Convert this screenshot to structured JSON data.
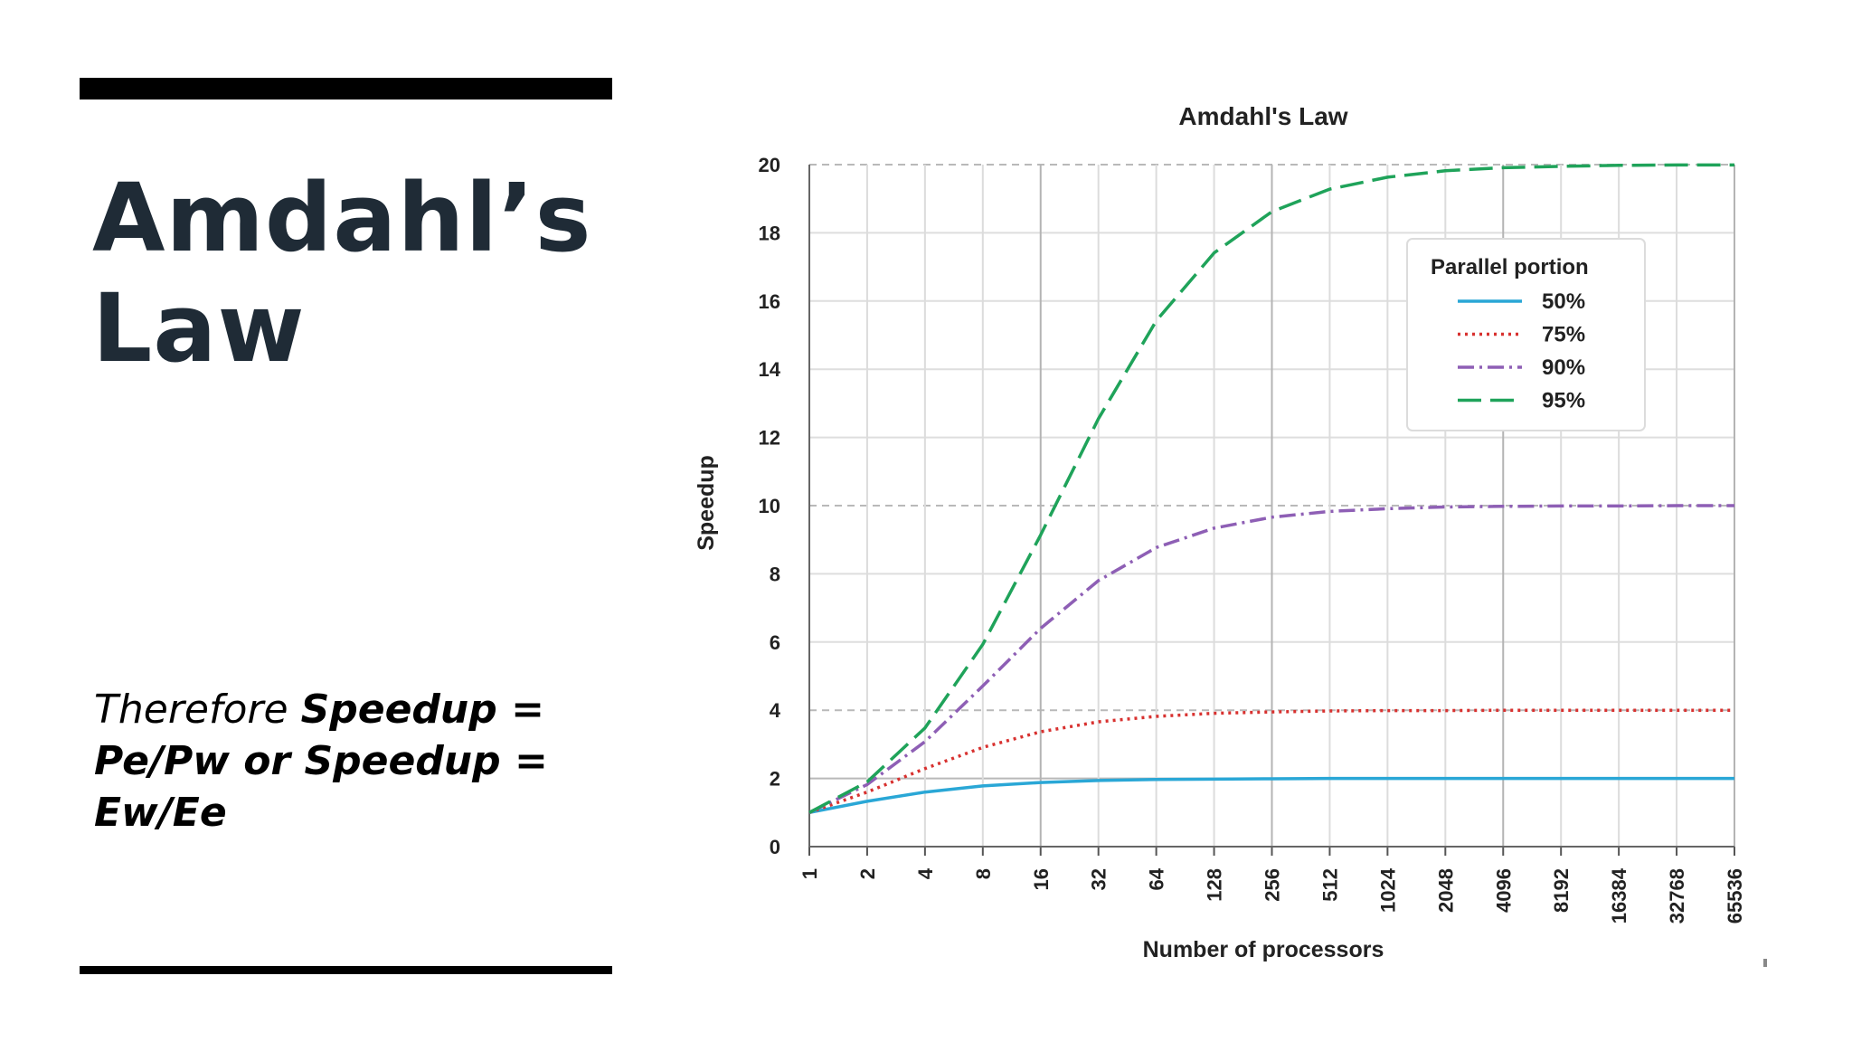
{
  "slide": {
    "title_line1": "Amdahl’s",
    "title_line2": "Law",
    "formula_prefix": "Therefore ",
    "formula_bold": "Speedup = Pe/Pw or Speedup = Ew/Ee"
  },
  "chart_data": {
    "type": "line",
    "title": "Amdahl's Law",
    "xlabel": "Number of processors",
    "ylabel": "Speedup",
    "x_scale": "log2",
    "categories": [
      "1",
      "2",
      "4",
      "8",
      "16",
      "32",
      "64",
      "128",
      "256",
      "512",
      "1024",
      "2048",
      "4096",
      "8192",
      "16384",
      "32768",
      "65536"
    ],
    "ylim": [
      0,
      20
    ],
    "yticks": [
      0,
      2,
      4,
      6,
      8,
      10,
      12,
      14,
      16,
      18,
      20
    ],
    "grid": true,
    "legend": {
      "title": "Parallel portion",
      "placement": "top-right"
    },
    "series": [
      {
        "name": "50%",
        "color": "#2aa7d6",
        "style": "solid",
        "values": [
          1.0,
          1.33,
          1.6,
          1.78,
          1.88,
          1.94,
          1.97,
          1.98,
          1.99,
          2.0,
          2.0,
          2.0,
          2.0,
          2.0,
          2.0,
          2.0,
          2.0
        ]
      },
      {
        "name": "75%",
        "color": "#d8312f",
        "style": "dotted",
        "values": [
          1.0,
          1.6,
          2.29,
          2.91,
          3.37,
          3.66,
          3.82,
          3.91,
          3.95,
          3.98,
          3.99,
          3.99,
          4.0,
          4.0,
          4.0,
          4.0,
          4.0
        ]
      },
      {
        "name": "90%",
        "color": "#8e5fb5",
        "style": "dashdot",
        "values": [
          1.0,
          1.82,
          3.08,
          4.71,
          6.4,
          7.8,
          8.77,
          9.34,
          9.66,
          9.83,
          9.91,
          9.96,
          9.98,
          9.99,
          9.99,
          10.0,
          10.0
        ]
      },
      {
        "name": "95%",
        "color": "#1fa35a",
        "style": "dashed",
        "values": [
          1.0,
          1.9,
          3.48,
          5.93,
          9.14,
          12.55,
          15.42,
          17.41,
          18.62,
          19.28,
          19.63,
          19.82,
          19.91,
          19.95,
          19.98,
          19.99,
          19.99
        ]
      }
    ]
  }
}
